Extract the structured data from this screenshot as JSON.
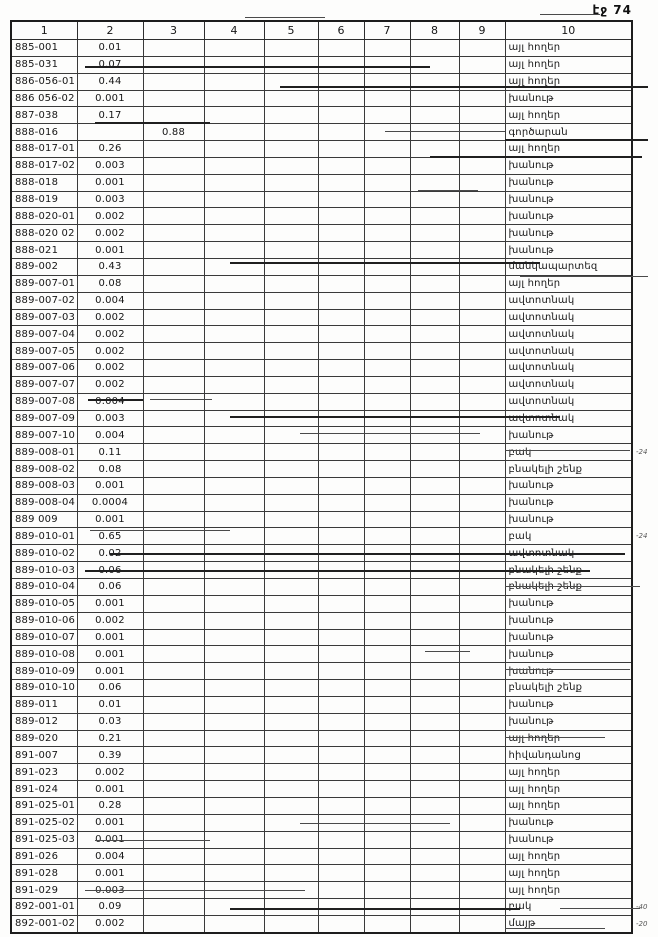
{
  "page": {
    "label": "էջ 74"
  },
  "table": {
    "headers": [
      "1",
      "2",
      "3",
      "4",
      "5",
      "6",
      "7",
      "8",
      "9",
      "10"
    ],
    "rows": [
      [
        "885-001",
        "0.01",
        "",
        "",
        "",
        "",
        "",
        "",
        "",
        "այլ հողեր"
      ],
      [
        "885-031",
        "0.07",
        "",
        "",
        "",
        "",
        "",
        "",
        "",
        "այլ հողեր"
      ],
      [
        "886-056-01",
        "0.44",
        "",
        "",
        "",
        "",
        "",
        "",
        "",
        "այլ հողեր"
      ],
      [
        "886 056-02",
        "0.001",
        "",
        "",
        "",
        "",
        "",
        "",
        "",
        "խանութ"
      ],
      [
        "887-038",
        "0.17",
        "",
        "",
        "",
        "",
        "",
        "",
        "",
        "այլ հողեր"
      ],
      [
        "888-016",
        "",
        "0.88",
        "",
        "",
        "",
        "",
        "",
        "",
        "գործարան"
      ],
      [
        "888-017-01",
        "0.26",
        "",
        "",
        "",
        "",
        "",
        "",
        "",
        "այլ հողեր"
      ],
      [
        "888-017-02",
        "0.003",
        "",
        "",
        "",
        "",
        "",
        "",
        "",
        "խանութ"
      ],
      [
        "888-018",
        "0.001",
        "",
        "",
        "",
        "",
        "",
        "",
        "",
        "խանութ"
      ],
      [
        "888-019",
        "0.003",
        "",
        "",
        "",
        "",
        "",
        "",
        "",
        "խանութ"
      ],
      [
        "888-020-01",
        "0.002",
        "",
        "",
        "",
        "",
        "",
        "",
        "",
        "խանութ"
      ],
      [
        "888-020 02",
        "0.002",
        "",
        "",
        "",
        "",
        "",
        "",
        "",
        "խանութ"
      ],
      [
        "888-021",
        "0.001",
        "",
        "",
        "",
        "",
        "",
        "",
        "",
        "խանութ"
      ],
      [
        "889-002",
        "0.43",
        "",
        "",
        "",
        "",
        "",
        "",
        "",
        "մանկապարտեզ"
      ],
      [
        "889-007-01",
        "0.08",
        "",
        "",
        "",
        "",
        "",
        "",
        "",
        "այլ հողեր"
      ],
      [
        "889-007-02",
        "0.004",
        "",
        "",
        "",
        "",
        "",
        "",
        "",
        "ավտոտնակ"
      ],
      [
        "889-007-03",
        "0.002",
        "",
        "",
        "",
        "",
        "",
        "",
        "",
        "ավտոտնակ"
      ],
      [
        "889-007-04",
        "0.002",
        "",
        "",
        "",
        "",
        "",
        "",
        "",
        "ավտոտնակ"
      ],
      [
        "889-007-05",
        "0.002",
        "",
        "",
        "",
        "",
        "",
        "",
        "",
        "ավտոտնակ"
      ],
      [
        "889-007-06",
        "0.002",
        "",
        "",
        "",
        "",
        "",
        "",
        "",
        "ավտոտնակ"
      ],
      [
        "889-007-07",
        "0.002",
        "",
        "",
        "",
        "",
        "",
        "",
        "",
        "ավտոտնակ"
      ],
      [
        "889-007-08",
        "0.004",
        "",
        "",
        "",
        "",
        "",
        "",
        "",
        "ավտոտնակ"
      ],
      [
        "889-007-09",
        "0.003",
        "",
        "",
        "",
        "",
        "",
        "",
        "",
        "ավտոտնակ"
      ],
      [
        "889-007-10",
        "0.004",
        "",
        "",
        "",
        "",
        "",
        "",
        "",
        "խանութ"
      ],
      [
        "889-008-01",
        "0.11",
        "",
        "",
        "",
        "",
        "",
        "",
        "",
        "բակ"
      ],
      [
        "889-008-02",
        "0.08",
        "",
        "",
        "",
        "",
        "",
        "",
        "",
        "բնակելի շենք"
      ],
      [
        "889-008-03",
        "0.001",
        "",
        "",
        "",
        "",
        "",
        "",
        "",
        "խանութ"
      ],
      [
        "889-008-04",
        "0.0004",
        "",
        "",
        "",
        "",
        "",
        "",
        "",
        "խանութ"
      ],
      [
        "889 009",
        "0.001",
        "",
        "",
        "",
        "",
        "",
        "",
        "",
        "խանութ"
      ],
      [
        "889-010-01",
        "0.65",
        "",
        "",
        "",
        "",
        "",
        "",
        "",
        "բակ"
      ],
      [
        "889-010-02",
        "0.02",
        "",
        "",
        "",
        "",
        "",
        "",
        "",
        "ավտոտնակ"
      ],
      [
        "889-010-03",
        "0.06",
        "",
        "",
        "",
        "",
        "",
        "",
        "",
        "բնակելի շենք"
      ],
      [
        "889-010-04",
        "0.06",
        "",
        "",
        "",
        "",
        "",
        "",
        "",
        "բնակելի շենք"
      ],
      [
        "889-010-05",
        "0.001",
        "",
        "",
        "",
        "",
        "",
        "",
        "",
        "խանութ"
      ],
      [
        "889-010-06",
        "0.002",
        "",
        "",
        "",
        "",
        "",
        "",
        "",
        "խանութ"
      ],
      [
        "889-010-07",
        "0.001",
        "",
        "",
        "",
        "",
        "",
        "",
        "",
        "խանութ"
      ],
      [
        "889-010-08",
        "0.001",
        "",
        "",
        "",
        "",
        "",
        "",
        "",
        "խանութ"
      ],
      [
        "889-010-09",
        "0.001",
        "",
        "",
        "",
        "",
        "",
        "",
        "",
        "խանութ"
      ],
      [
        "889-010-10",
        "0.06",
        "",
        "",
        "",
        "",
        "",
        "",
        "",
        "բնակելի շենք"
      ],
      [
        "889-011",
        "0.01",
        "",
        "",
        "",
        "",
        "",
        "",
        "",
        "խանութ"
      ],
      [
        "889-012",
        "0.03",
        "",
        "",
        "",
        "",
        "",
        "",
        "",
        "խանութ"
      ],
      [
        "889-020",
        "0.21",
        "",
        "",
        "",
        "",
        "",
        "",
        "",
        "այլ հողեր"
      ],
      [
        "891-007",
        "0.39",
        "",
        "",
        "",
        "",
        "",
        "",
        "",
        "հիվանդանոց"
      ],
      [
        "891-023",
        "0.002",
        "",
        "",
        "",
        "",
        "",
        "",
        "",
        "այլ հողեր"
      ],
      [
        "891-024",
        "0.001",
        "",
        "",
        "",
        "",
        "",
        "",
        "",
        "այլ հողեր"
      ],
      [
        "891-025-01",
        "0.28",
        "",
        "",
        "",
        "",
        "",
        "",
        "",
        "այլ հողեր"
      ],
      [
        "891-025-02",
        "0.001",
        "",
        "",
        "",
        "",
        "",
        "",
        "",
        "խանութ"
      ],
      [
        "891-025-03",
        "0.001",
        "",
        "",
        "",
        "",
        "",
        "",
        "",
        "խանութ"
      ],
      [
        "891-026",
        "0.004",
        "",
        "",
        "",
        "",
        "",
        "",
        "",
        "այլ հողեր"
      ],
      [
        "891-028",
        "0.001",
        "",
        "",
        "",
        "",
        "",
        "",
        "",
        "այլ հողեր"
      ],
      [
        "891-029",
        "0.003",
        "",
        "",
        "",
        "",
        "",
        "",
        "",
        "այլ հողեր"
      ],
      [
        "892-001-01",
        "0.09",
        "",
        "",
        "",
        "",
        "",
        "",
        "",
        "բակ"
      ],
      [
        "892-001-02",
        "0.002",
        "",
        "",
        "",
        "",
        "",
        "",
        "",
        "մայթ"
      ]
    ]
  },
  "margin_marks": [
    {
      "text": "-24",
      "row_code": "889-008-01"
    },
    {
      "text": "-24",
      "row_code": "889-010-01"
    },
    {
      "text": "-40",
      "row_code": "892-001-01"
    },
    {
      "text": "-20",
      "row_code": "892-001-02"
    }
  ]
}
